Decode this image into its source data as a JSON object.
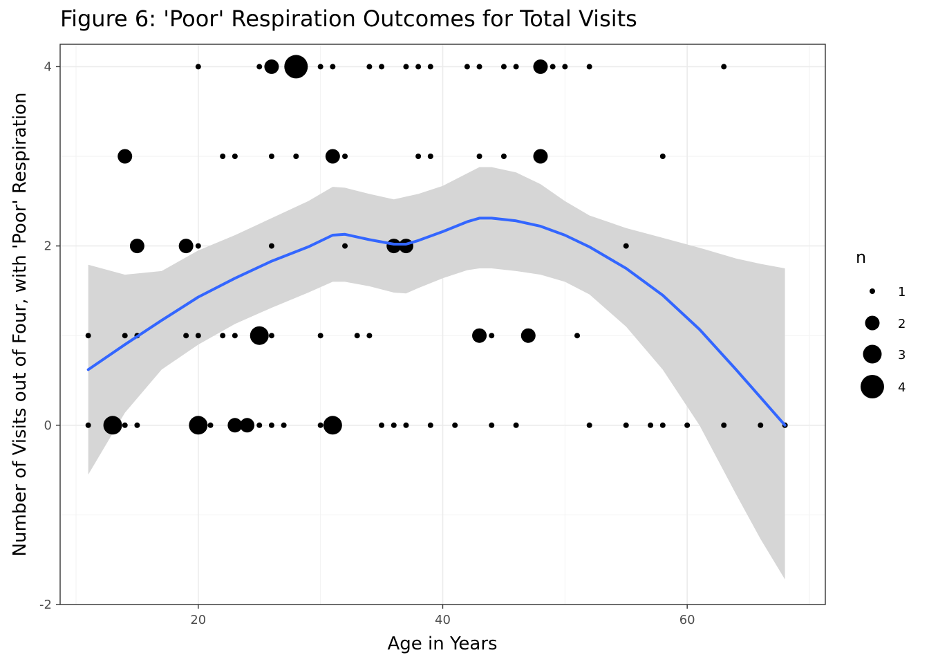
{
  "chart_data": {
    "type": "scatter",
    "title": "Figure 6: 'Poor' Respiration Outcomes for Total Visits",
    "xlabel": "Age in Years",
    "ylabel": "Number of Visits out of Four, with 'Poor' Respiration",
    "xlim": [
      8.7,
      71.3
    ],
    "ylim": [
      -2,
      4.25
    ],
    "xticks": [
      20,
      40,
      60
    ],
    "yticks": [
      -2,
      0,
      2,
      4
    ],
    "grid": true,
    "legend": {
      "title": "n",
      "position": "right",
      "sizes": [
        1,
        2,
        3,
        4
      ]
    },
    "points": [
      {
        "x": 20,
        "y": 4,
        "n": 1
      },
      {
        "x": 25,
        "y": 4,
        "n": 1
      },
      {
        "x": 26,
        "y": 4,
        "n": 2
      },
      {
        "x": 28,
        "y": 4,
        "n": 4
      },
      {
        "x": 30,
        "y": 4,
        "n": 1
      },
      {
        "x": 31,
        "y": 4,
        "n": 1
      },
      {
        "x": 34,
        "y": 4,
        "n": 1
      },
      {
        "x": 35,
        "y": 4,
        "n": 1
      },
      {
        "x": 37,
        "y": 4,
        "n": 1
      },
      {
        "x": 38,
        "y": 4,
        "n": 1
      },
      {
        "x": 39,
        "y": 4,
        "n": 1
      },
      {
        "x": 42,
        "y": 4,
        "n": 1
      },
      {
        "x": 43,
        "y": 4,
        "n": 1
      },
      {
        "x": 45,
        "y": 4,
        "n": 1
      },
      {
        "x": 46,
        "y": 4,
        "n": 1
      },
      {
        "x": 48,
        "y": 4,
        "n": 2
      },
      {
        "x": 49,
        "y": 4,
        "n": 1
      },
      {
        "x": 50,
        "y": 4,
        "n": 1
      },
      {
        "x": 52,
        "y": 4,
        "n": 1
      },
      {
        "x": 63,
        "y": 4,
        "n": 1
      },
      {
        "x": 14,
        "y": 3,
        "n": 2
      },
      {
        "x": 22,
        "y": 3,
        "n": 1
      },
      {
        "x": 23,
        "y": 3,
        "n": 1
      },
      {
        "x": 26,
        "y": 3,
        "n": 1
      },
      {
        "x": 28,
        "y": 3,
        "n": 1
      },
      {
        "x": 31,
        "y": 3,
        "n": 2
      },
      {
        "x": 32,
        "y": 3,
        "n": 1
      },
      {
        "x": 38,
        "y": 3,
        "n": 1
      },
      {
        "x": 39,
        "y": 3,
        "n": 1
      },
      {
        "x": 43,
        "y": 3,
        "n": 1
      },
      {
        "x": 45,
        "y": 3,
        "n": 1
      },
      {
        "x": 48,
        "y": 3,
        "n": 2
      },
      {
        "x": 58,
        "y": 3,
        "n": 1
      },
      {
        "x": 15,
        "y": 2,
        "n": 2
      },
      {
        "x": 19,
        "y": 2,
        "n": 2
      },
      {
        "x": 20,
        "y": 2,
        "n": 1
      },
      {
        "x": 26,
        "y": 2,
        "n": 1
      },
      {
        "x": 32,
        "y": 2,
        "n": 1
      },
      {
        "x": 36,
        "y": 2,
        "n": 2
      },
      {
        "x": 37,
        "y": 2,
        "n": 2
      },
      {
        "x": 55,
        "y": 2,
        "n": 1
      },
      {
        "x": 11,
        "y": 1,
        "n": 1
      },
      {
        "x": 14,
        "y": 1,
        "n": 1
      },
      {
        "x": 15,
        "y": 1,
        "n": 1
      },
      {
        "x": 19,
        "y": 1,
        "n": 1
      },
      {
        "x": 20,
        "y": 1,
        "n": 1
      },
      {
        "x": 22,
        "y": 1,
        "n": 1
      },
      {
        "x": 23,
        "y": 1,
        "n": 1
      },
      {
        "x": 25,
        "y": 1,
        "n": 3
      },
      {
        "x": 26,
        "y": 1,
        "n": 1
      },
      {
        "x": 30,
        "y": 1,
        "n": 1
      },
      {
        "x": 33,
        "y": 1,
        "n": 1
      },
      {
        "x": 34,
        "y": 1,
        "n": 1
      },
      {
        "x": 43,
        "y": 1,
        "n": 2
      },
      {
        "x": 44,
        "y": 1,
        "n": 1
      },
      {
        "x": 47,
        "y": 1,
        "n": 2
      },
      {
        "x": 51,
        "y": 1,
        "n": 1
      },
      {
        "x": 11,
        "y": 0,
        "n": 1
      },
      {
        "x": 13,
        "y": 0,
        "n": 3
      },
      {
        "x": 14,
        "y": 0,
        "n": 1
      },
      {
        "x": 15,
        "y": 0,
        "n": 1
      },
      {
        "x": 20,
        "y": 0,
        "n": 3
      },
      {
        "x": 21,
        "y": 0,
        "n": 1
      },
      {
        "x": 23,
        "y": 0,
        "n": 2
      },
      {
        "x": 24,
        "y": 0,
        "n": 2
      },
      {
        "x": 25,
        "y": 0,
        "n": 1
      },
      {
        "x": 26,
        "y": 0,
        "n": 1
      },
      {
        "x": 27,
        "y": 0,
        "n": 1
      },
      {
        "x": 30,
        "y": 0,
        "n": 1
      },
      {
        "x": 31,
        "y": 0,
        "n": 3
      },
      {
        "x": 35,
        "y": 0,
        "n": 1
      },
      {
        "x": 36,
        "y": 0,
        "n": 1
      },
      {
        "x": 37,
        "y": 0,
        "n": 1
      },
      {
        "x": 39,
        "y": 0,
        "n": 1
      },
      {
        "x": 41,
        "y": 0,
        "n": 1
      },
      {
        "x": 44,
        "y": 0,
        "n": 1
      },
      {
        "x": 46,
        "y": 0,
        "n": 1
      },
      {
        "x": 52,
        "y": 0,
        "n": 1
      },
      {
        "x": 55,
        "y": 0,
        "n": 1
      },
      {
        "x": 57,
        "y": 0,
        "n": 1
      },
      {
        "x": 58,
        "y": 0,
        "n": 1
      },
      {
        "x": 60,
        "y": 0,
        "n": 1
      },
      {
        "x": 63,
        "y": 0,
        "n": 1
      },
      {
        "x": 66,
        "y": 0,
        "n": 1
      },
      {
        "x": 68,
        "y": 0,
        "n": 1
      }
    ],
    "smooth": {
      "color": "#3366FF",
      "band_color": "#d6d6d6",
      "x": [
        11,
        14,
        17,
        20,
        23,
        26,
        29,
        31,
        32,
        34,
        36,
        37,
        38,
        40,
        42,
        43,
        44,
        46,
        48,
        50,
        52,
        55,
        58,
        61,
        64,
        66,
        68
      ],
      "y": [
        0.62,
        0.9,
        1.17,
        1.43,
        1.64,
        1.83,
        1.99,
        2.12,
        2.13,
        2.07,
        2.02,
        2.02,
        2.06,
        2.16,
        2.27,
        2.31,
        2.31,
        2.28,
        2.22,
        2.12,
        1.99,
        1.75,
        1.45,
        1.07,
        0.62,
        0.31,
        0.0
      ],
      "upper": [
        1.79,
        1.68,
        1.72,
        1.95,
        2.12,
        2.31,
        2.5,
        2.66,
        2.65,
        2.58,
        2.52,
        2.55,
        2.58,
        2.67,
        2.81,
        2.88,
        2.88,
        2.82,
        2.69,
        2.5,
        2.34,
        2.2,
        2.09,
        1.98,
        1.86,
        1.8,
        1.75
      ],
      "lower": [
        -0.55,
        0.14,
        0.62,
        0.9,
        1.13,
        1.31,
        1.48,
        1.6,
        1.6,
        1.55,
        1.48,
        1.47,
        1.53,
        1.64,
        1.73,
        1.75,
        1.75,
        1.72,
        1.68,
        1.6,
        1.46,
        1.1,
        0.62,
        0.0,
        -0.77,
        -1.27,
        -1.72
      ]
    }
  }
}
